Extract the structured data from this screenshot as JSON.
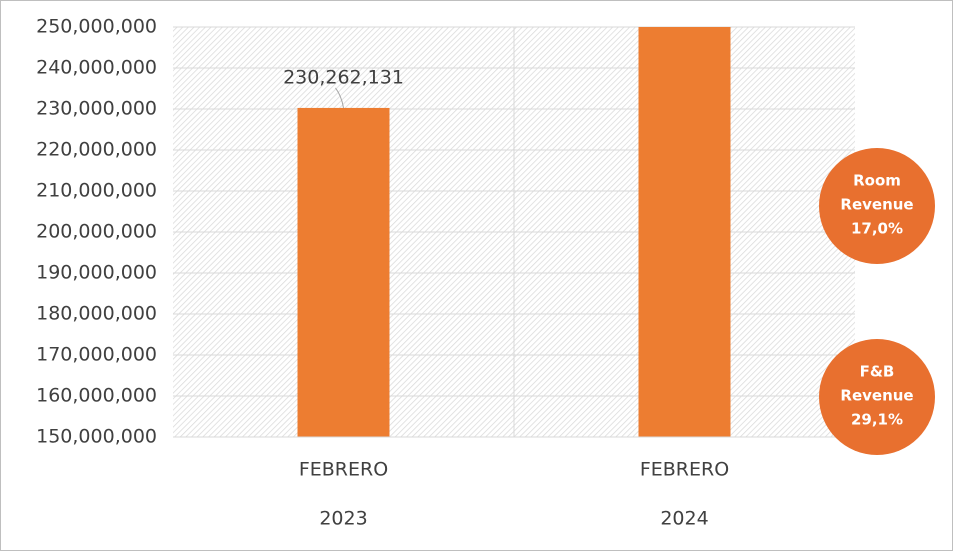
{
  "chart_data": {
    "type": "bar",
    "categories": [
      "FEBRERO",
      "FEBRERO"
    ],
    "category_groups": [
      "2023",
      "2024"
    ],
    "series": [
      {
        "color": "#ed7d31",
        "values": [
          230262131,
          250000000
        ],
        "value_labels": [
          "230,262,131",
          null
        ]
      }
    ],
    "ylim": [
      150000000,
      250000000
    ],
    "yticks": [
      {
        "value": 150000000,
        "label": "150,000,000"
      },
      {
        "value": 160000000,
        "label": "160,000,000"
      },
      {
        "value": 170000000,
        "label": "170,000,000"
      },
      {
        "value": 180000000,
        "label": "180,000,000"
      },
      {
        "value": 190000000,
        "label": "190,000,000"
      },
      {
        "value": 200000000,
        "label": "200,000,000"
      },
      {
        "value": 210000000,
        "label": "210,000,000"
      },
      {
        "value": 220000000,
        "label": "220,000,000"
      },
      {
        "value": 230000000,
        "label": "230,000,000"
      },
      {
        "value": 240000000,
        "label": "240,000,000"
      },
      {
        "value": 250000000,
        "label": "250,000,000"
      }
    ],
    "grid": true,
    "annotations": [
      {
        "lines": [
          "Room",
          "Revenue",
          "17,0%"
        ],
        "color": "#e8702f"
      },
      {
        "lines": [
          "F&B",
          "Revenue",
          "29,1%"
        ],
        "color": "#e8702f"
      }
    ]
  }
}
